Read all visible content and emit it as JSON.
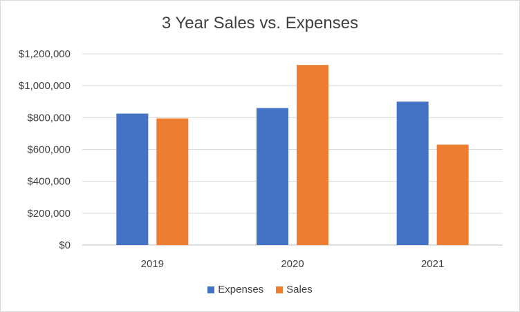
{
  "chart_data": {
    "type": "bar",
    "title": "3 Year Sales vs. Expenses",
    "xlabel": "",
    "ylabel": "",
    "categories": [
      "2019",
      "2020",
      "2021"
    ],
    "series": [
      {
        "name": "Expenses",
        "color": "#4472C4",
        "values": [
          825000,
          860000,
          900000
        ]
      },
      {
        "name": "Sales",
        "color": "#ED7D31",
        "values": [
          795000,
          1130000,
          630000
        ]
      }
    ],
    "ylim": [
      0,
      1200000
    ],
    "yticks": [
      0,
      200000,
      400000,
      600000,
      800000,
      1000000,
      1200000
    ],
    "ytick_labels": [
      "$0",
      "$200,000",
      "$400,000",
      "$600,000",
      "$800,000",
      "$1,000,000",
      "$1,200,000"
    ],
    "grid": true,
    "legend_position": "bottom"
  }
}
